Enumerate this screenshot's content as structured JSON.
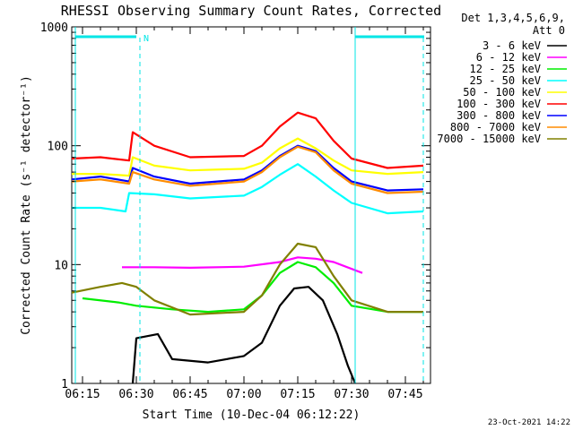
{
  "chart_data": {
    "type": "line",
    "title": "RHESSI Observing Summary Count Rates, Corrected",
    "xlabel": "Start Time (10-Dec-04 06:12:22)",
    "ylabel": "Corrected Count Rate (s⁻¹ detector⁻¹)",
    "yscale": "log",
    "ylim": [
      1,
      1000
    ],
    "xlim": [
      "06:12",
      "07:52"
    ],
    "x_ticks": [
      "06:15",
      "06:30",
      "06:45",
      "07:00",
      "07:15",
      "07:30",
      "07:45"
    ],
    "y_ticks": [
      "1",
      "10",
      "100",
      "1000"
    ],
    "legend_title": [
      "Det 1,3,4,5,6,9,",
      "Att 0"
    ],
    "legend_position": "right",
    "footer": "23-Oct-2021 14:22",
    "annotation": {
      "label": "N",
      "color": "#00e6e6"
    },
    "series": [
      {
        "name": "3 - 6 keV",
        "color": "#000000",
        "points": [
          [
            "06:29",
            1
          ],
          [
            "06:30",
            2.4
          ],
          [
            "06:36",
            2.6
          ],
          [
            "06:40",
            1.6
          ],
          [
            "06:50",
            1.5
          ],
          [
            "07:00",
            1.7
          ],
          [
            "07:05",
            2.2
          ],
          [
            "07:10",
            4.5
          ],
          [
            "07:14",
            6.3
          ],
          [
            "07:18",
            6.5
          ],
          [
            "07:22",
            5.0
          ],
          [
            "07:26",
            2.6
          ],
          [
            "07:29",
            1.4
          ],
          [
            "07:31",
            1.0
          ]
        ]
      },
      {
        "name": "6 - 12 keV",
        "color": "#ff00ff",
        "points": [
          [
            "06:26",
            9.5
          ],
          [
            "06:35",
            9.5
          ],
          [
            "06:45",
            9.4
          ],
          [
            "07:00",
            9.6
          ],
          [
            "07:10",
            10.5
          ],
          [
            "07:15",
            11.5
          ],
          [
            "07:20",
            11.2
          ],
          [
            "07:25",
            10.5
          ],
          [
            "07:33",
            8.5
          ]
        ]
      },
      {
        "name": "12 - 25 keV",
        "color": "#00ee00",
        "points": [
          [
            "06:15",
            5.2
          ],
          [
            "06:25",
            4.8
          ],
          [
            "06:30",
            4.5
          ],
          [
            "06:40",
            4.2
          ],
          [
            "06:50",
            4.0
          ],
          [
            "07:00",
            4.2
          ],
          [
            "07:05",
            5.5
          ],
          [
            "07:10",
            8.5
          ],
          [
            "07:15",
            10.5
          ],
          [
            "07:20",
            9.5
          ],
          [
            "07:25",
            7.0
          ],
          [
            "07:30",
            4.5
          ],
          [
            "07:40",
            4.0
          ],
          [
            "07:50",
            4.0
          ]
        ]
      },
      {
        "name": "25 - 50 keV",
        "color": "#00ffff",
        "points": [
          [
            "06:12",
            30
          ],
          [
            "06:20",
            30
          ],
          [
            "06:27",
            28
          ],
          [
            "06:28",
            40
          ],
          [
            "06:35",
            39
          ],
          [
            "06:45",
            36
          ],
          [
            "07:00",
            38
          ],
          [
            "07:05",
            45
          ],
          [
            "07:10",
            57
          ],
          [
            "07:15",
            70
          ],
          [
            "07:20",
            55
          ],
          [
            "07:25",
            42
          ],
          [
            "07:30",
            33
          ],
          [
            "07:40",
            27
          ],
          [
            "07:50",
            28
          ]
        ]
      },
      {
        "name": "50 - 100 keV",
        "color": "#ffff00",
        "points": [
          [
            "06:12",
            58
          ],
          [
            "06:20",
            58
          ],
          [
            "06:28",
            56
          ],
          [
            "06:29",
            80
          ],
          [
            "06:35",
            68
          ],
          [
            "06:45",
            62
          ],
          [
            "07:00",
            64
          ],
          [
            "07:05",
            72
          ],
          [
            "07:10",
            95
          ],
          [
            "07:15",
            115
          ],
          [
            "07:20",
            95
          ],
          [
            "07:25",
            75
          ],
          [
            "07:30",
            62
          ],
          [
            "07:40",
            58
          ],
          [
            "07:50",
            60
          ]
        ]
      },
      {
        "name": "100 - 300 keV",
        "color": "#ff0000",
        "points": [
          [
            "06:12",
            78
          ],
          [
            "06:20",
            80
          ],
          [
            "06:28",
            75
          ],
          [
            "06:29",
            130
          ],
          [
            "06:35",
            100
          ],
          [
            "06:45",
            80
          ],
          [
            "07:00",
            82
          ],
          [
            "07:05",
            100
          ],
          [
            "07:10",
            145
          ],
          [
            "07:15",
            190
          ],
          [
            "07:20",
            170
          ],
          [
            "07:25",
            110
          ],
          [
            "07:30",
            78
          ],
          [
            "07:40",
            65
          ],
          [
            "07:50",
            68
          ]
        ]
      },
      {
        "name": "300 - 800 keV",
        "color": "#0000ff",
        "points": [
          [
            "06:12",
            52
          ],
          [
            "06:20",
            55
          ],
          [
            "06:28",
            50
          ],
          [
            "06:29",
            65
          ],
          [
            "06:35",
            55
          ],
          [
            "06:45",
            48
          ],
          [
            "07:00",
            52
          ],
          [
            "07:05",
            62
          ],
          [
            "07:10",
            82
          ],
          [
            "07:15",
            100
          ],
          [
            "07:20",
            90
          ],
          [
            "07:25",
            65
          ],
          [
            "07:30",
            50
          ],
          [
            "07:40",
            42
          ],
          [
            "07:50",
            43
          ]
        ]
      },
      {
        "name": "800 - 7000 keV",
        "color": "#ff8c00",
        "points": [
          [
            "06:12",
            50
          ],
          [
            "06:20",
            52
          ],
          [
            "06:28",
            48
          ],
          [
            "06:29",
            60
          ],
          [
            "06:35",
            52
          ],
          [
            "06:45",
            46
          ],
          [
            "07:00",
            50
          ],
          [
            "07:05",
            60
          ],
          [
            "07:10",
            80
          ],
          [
            "07:15",
            98
          ],
          [
            "07:20",
            88
          ],
          [
            "07:25",
            62
          ],
          [
            "07:30",
            48
          ],
          [
            "07:40",
            40
          ],
          [
            "07:50",
            41
          ]
        ]
      },
      {
        "name": "7000 - 15000 keV",
        "color": "#808000",
        "points": [
          [
            "06:12",
            5.8
          ],
          [
            "06:20",
            6.5
          ],
          [
            "06:26",
            7.0
          ],
          [
            "06:30",
            6.5
          ],
          [
            "06:35",
            5.0
          ],
          [
            "06:45",
            3.8
          ],
          [
            "07:00",
            4.0
          ],
          [
            "07:05",
            5.5
          ],
          [
            "07:10",
            10.0
          ],
          [
            "07:15",
            15.0
          ],
          [
            "07:20",
            14.0
          ],
          [
            "07:25",
            8.0
          ],
          [
            "07:30",
            5.0
          ],
          [
            "07:40",
            4.0
          ],
          [
            "07:50",
            4.0
          ]
        ]
      }
    ]
  }
}
